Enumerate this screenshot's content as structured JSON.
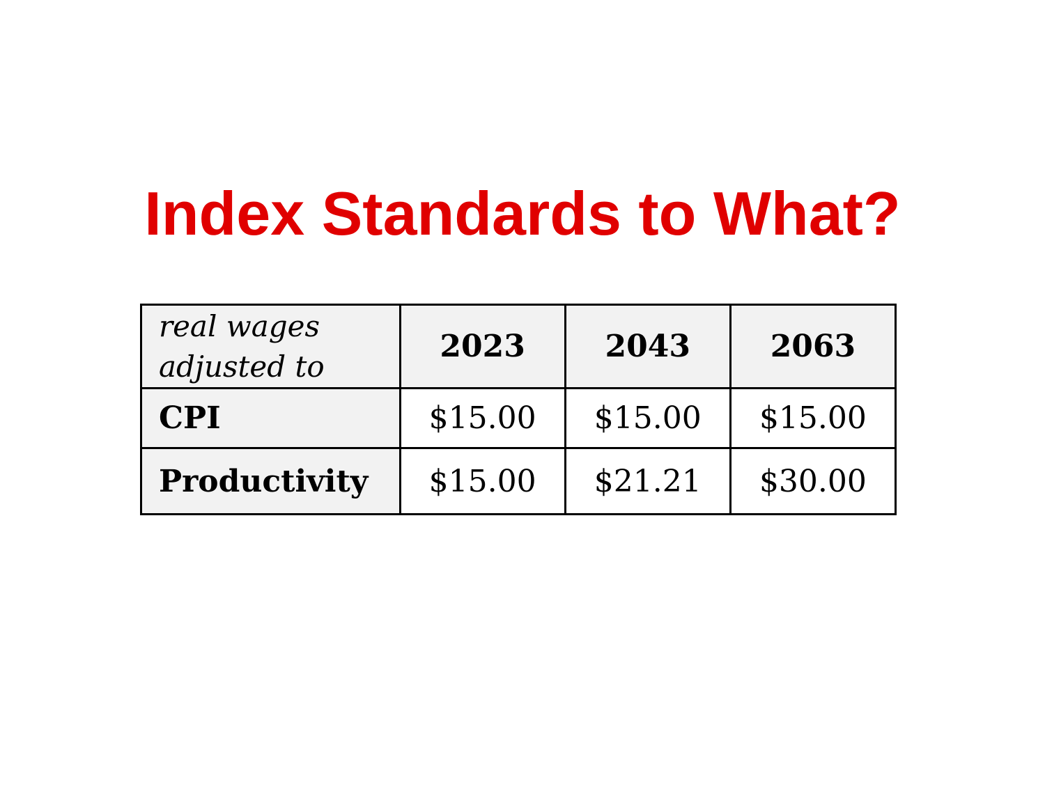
{
  "title": "Index Standards to What?",
  "table": {
    "corner_line1": "real wages",
    "corner_line2": "adjusted to",
    "columns": [
      "2023",
      "2043",
      "2063"
    ],
    "rows": [
      {
        "label": "CPI",
        "values": [
          "$15.00",
          "$15.00",
          "$15.00"
        ]
      },
      {
        "label": "Productivity",
        "values": [
          "$15.00",
          "$21.21",
          "$30.00"
        ]
      }
    ]
  },
  "colors": {
    "title": "#e00000",
    "header_bg": "#f2f2f2",
    "border": "#000000"
  }
}
